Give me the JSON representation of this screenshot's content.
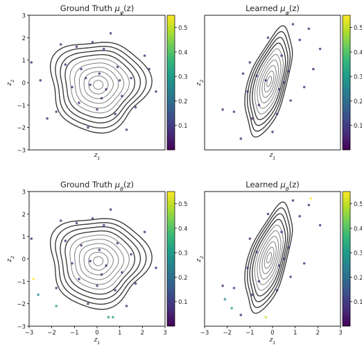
{
  "colormap": {
    "name": "viridis",
    "stops": [
      "#440154",
      "#482878",
      "#3e4989",
      "#31688e",
      "#26828e",
      "#1f9e89",
      "#35b779",
      "#6ece58",
      "#b5de2b",
      "#fde725"
    ],
    "range": [
      0,
      0.55
    ],
    "ticks": [
      0.1,
      0.2,
      0.3,
      0.4,
      0.5
    ],
    "tick_labels": [
      "0.1",
      "0.2",
      "0.3",
      "0.4",
      "0.5"
    ]
  },
  "chart_data": [
    {
      "type": "scatter",
      "title": "Ground Truth μφ(z)",
      "title_parts": {
        "main": "Ground Truth ",
        "sym": "μ",
        "sub": "φ",
        "arg": "(z)"
      },
      "xlabel": {
        "base": "z",
        "sub": "1"
      },
      "ylabel": {
        "base": "z",
        "sub": "2"
      },
      "xlim": [
        -3,
        3
      ],
      "ylim": [
        -3,
        3
      ],
      "xticks": [],
      "xtick_labels": [],
      "yticks": [
        -3,
        -2,
        -1,
        0,
        1,
        2,
        3
      ],
      "ytick_labels": [
        "−3",
        "−2",
        "−1",
        "0",
        "1",
        "2",
        "3"
      ],
      "contour_style": "ground-truth",
      "points": [
        {
          "x": -0.9,
          "y": 1.6,
          "c": 0.05
        },
        {
          "x": -0.2,
          "y": 1.8,
          "c": 0.05
        },
        {
          "x": 0.3,
          "y": 1.5,
          "c": 0.05
        },
        {
          "x": -1.4,
          "y": 0.8,
          "c": 0.05
        },
        {
          "x": -0.7,
          "y": 0.6,
          "c": 0.05
        },
        {
          "x": 0.1,
          "y": 0.4,
          "c": 0.05
        },
        {
          "x": 0.9,
          "y": 0.7,
          "c": 0.05
        },
        {
          "x": 1.5,
          "y": 0.2,
          "c": 0.05
        },
        {
          "x": -1.1,
          "y": -0.2,
          "c": 0.05
        },
        {
          "x": -0.3,
          "y": -0.1,
          "c": 0.05
        },
        {
          "x": 0.4,
          "y": -0.3,
          "c": 0.05
        },
        {
          "x": 1.1,
          "y": -0.6,
          "c": 0.05
        },
        {
          "x": -0.8,
          "y": -0.9,
          "c": 0.05
        },
        {
          "x": 0.0,
          "y": -1.2,
          "c": 0.05
        },
        {
          "x": 0.8,
          "y": -1.4,
          "c": 0.05
        },
        {
          "x": 1.7,
          "y": -1.1,
          "c": 0.05
        },
        {
          "x": -1.8,
          "y": -1.3,
          "c": 0.05
        },
        {
          "x": -2.9,
          "y": 0.9,
          "c": 0.05
        },
        {
          "x": -2.2,
          "y": -1.6,
          "c": 0.05
        },
        {
          "x": 2.1,
          "y": 1.2,
          "c": 0.05
        },
        {
          "x": 2.6,
          "y": -0.4,
          "c": 0.05
        },
        {
          "x": 0.6,
          "y": 2.2,
          "c": 0.05
        },
        {
          "x": -0.4,
          "y": -2.0,
          "c": 0.05
        },
        {
          "x": 1.3,
          "y": -2.1,
          "c": 0.05
        },
        {
          "x": -1.6,
          "y": 1.7,
          "c": 0.05
        },
        {
          "x": 0.2,
          "y": -0.7,
          "c": 0.05
        },
        {
          "x": -0.5,
          "y": 0.2,
          "c": 0.05
        },
        {
          "x": 1.0,
          "y": 0.1,
          "c": 0.05
        },
        {
          "x": -2.5,
          "y": 0.1,
          "c": 0.05
        },
        {
          "x": 2.3,
          "y": 0.6,
          "c": 0.05
        }
      ]
    },
    {
      "type": "scatter",
      "title": "Learned μφ(z)",
      "title_parts": {
        "main": "Learned ",
        "sym": "μ",
        "sub": "φ",
        "arg": "(z)"
      },
      "xlabel": {
        "base": "z",
        "sub": "1"
      },
      "ylabel": {
        "base": "z",
        "sub": "2"
      },
      "xlim": [
        -3,
        3
      ],
      "ylim": [
        -3,
        3
      ],
      "xticks": [],
      "xtick_labels": [],
      "yticks": [],
      "ytick_labels": [],
      "contour_style": "learned",
      "points": [
        {
          "x": -1.0,
          "y": 0.9,
          "c": 0.05
        },
        {
          "x": -0.7,
          "y": 0.3,
          "c": 0.05
        },
        {
          "x": -1.1,
          "y": -0.4,
          "c": 0.05
        },
        {
          "x": -0.6,
          "y": -1.0,
          "c": 0.05
        },
        {
          "x": -0.9,
          "y": -1.6,
          "c": 0.05
        },
        {
          "x": 0.4,
          "y": 1.2,
          "c": 0.05
        },
        {
          "x": 0.7,
          "y": 0.5,
          "c": 0.05
        },
        {
          "x": 0.3,
          "y": -0.3,
          "c": 0.05
        },
        {
          "x": 0.8,
          "y": -0.8,
          "c": 0.05
        },
        {
          "x": 0.2,
          "y": -1.4,
          "c": 0.05
        },
        {
          "x": 1.2,
          "y": 1.9,
          "c": 0.05
        },
        {
          "x": 1.6,
          "y": 2.4,
          "c": 0.05
        },
        {
          "x": 0.9,
          "y": 2.6,
          "c": 0.05
        },
        {
          "x": -1.7,
          "y": -1.3,
          "c": 0.05
        },
        {
          "x": -2.2,
          "y": -1.2,
          "c": 0.05
        },
        {
          "x": -1.4,
          "y": -2.5,
          "c": 0.05
        },
        {
          "x": 1.4,
          "y": -0.2,
          "c": 0.05
        },
        {
          "x": -0.2,
          "y": 2.0,
          "c": 0.05
        },
        {
          "x": 2.1,
          "y": 1.5,
          "c": 0.05
        },
        {
          "x": -0.3,
          "y": 0.1,
          "c": 0.05
        },
        {
          "x": 0.0,
          "y": -2.2,
          "c": 0.05
        },
        {
          "x": 1.8,
          "y": 0.6,
          "c": 0.05
        },
        {
          "x": -1.3,
          "y": 0.4,
          "c": 0.05
        },
        {
          "x": 0.5,
          "y": 0.0,
          "c": 0.05
        }
      ]
    },
    {
      "type": "scatter",
      "title": "Ground Truth μθ(z)",
      "title_parts": {
        "main": "Ground Truth ",
        "sym": "μ",
        "sub": "θ",
        "arg": "(z)"
      },
      "xlabel": {
        "base": "z",
        "sub": "1"
      },
      "ylabel": {
        "base": "z",
        "sub": "2"
      },
      "xlim": [
        -3,
        3
      ],
      "ylim": [
        -3,
        3
      ],
      "xticks": [
        -3,
        -2,
        -1,
        0,
        1,
        2,
        3
      ],
      "xtick_labels": [
        "−3",
        "−2",
        "−1",
        "0",
        "1",
        "2",
        "3"
      ],
      "yticks": [
        -3,
        -2,
        -1,
        0,
        1,
        2,
        3
      ],
      "ytick_labels": [
        "−3",
        "−2",
        "−1",
        "0",
        "1",
        "2",
        "3"
      ],
      "contour_style": "ground-truth",
      "points": [
        {
          "x": -0.9,
          "y": 1.6,
          "c": 0.05
        },
        {
          "x": -0.2,
          "y": 1.8,
          "c": 0.05
        },
        {
          "x": 0.3,
          "y": 1.5,
          "c": 0.05
        },
        {
          "x": -1.4,
          "y": 0.8,
          "c": 0.05
        },
        {
          "x": -0.7,
          "y": 0.6,
          "c": 0.05
        },
        {
          "x": 0.1,
          "y": 0.4,
          "c": 0.05
        },
        {
          "x": 0.9,
          "y": 0.7,
          "c": 0.05
        },
        {
          "x": 1.5,
          "y": 0.2,
          "c": 0.05
        },
        {
          "x": -1.1,
          "y": -0.2,
          "c": 0.05
        },
        {
          "x": -0.3,
          "y": -0.1,
          "c": 0.05
        },
        {
          "x": 0.4,
          "y": -0.3,
          "c": 0.05
        },
        {
          "x": 1.1,
          "y": -0.6,
          "c": 0.05
        },
        {
          "x": -0.8,
          "y": -0.9,
          "c": 0.05
        },
        {
          "x": 0.0,
          "y": -1.2,
          "c": 0.05
        },
        {
          "x": 0.8,
          "y": -1.4,
          "c": 0.05
        },
        {
          "x": 1.7,
          "y": -1.1,
          "c": 0.05
        },
        {
          "x": -1.8,
          "y": -1.3,
          "c": 0.05
        },
        {
          "x": 2.1,
          "y": 1.2,
          "c": 0.05
        },
        {
          "x": 2.6,
          "y": -0.4,
          "c": 0.05
        },
        {
          "x": 0.6,
          "y": 2.2,
          "c": 0.05
        },
        {
          "x": -0.4,
          "y": -2.0,
          "c": 0.05
        },
        {
          "x": 1.3,
          "y": -2.1,
          "c": 0.05
        },
        {
          "x": -1.6,
          "y": 1.7,
          "c": 0.05
        },
        {
          "x": -2.9,
          "y": 0.9,
          "c": 0.05
        },
        {
          "x": -2.8,
          "y": -0.9,
          "c": 0.55
        },
        {
          "x": -2.6,
          "y": -1.6,
          "c": 0.25
        },
        {
          "x": -1.8,
          "y": -2.1,
          "c": 0.3
        },
        {
          "x": 0.5,
          "y": -2.6,
          "c": 0.3
        },
        {
          "x": 0.7,
          "y": -2.6,
          "c": 0.3
        },
        {
          "x": 0.2,
          "y": -0.7,
          "c": 0.05
        }
      ]
    },
    {
      "type": "scatter",
      "title": "Learned μθ(z)",
      "title_parts": {
        "main": "Learned ",
        "sym": "μ",
        "sub": "θ",
        "arg": "(z)"
      },
      "xlabel": {
        "base": "z",
        "sub": "1"
      },
      "ylabel": {
        "base": "z",
        "sub": "2"
      },
      "xlim": [
        -3,
        3
      ],
      "ylim": [
        -3,
        3
      ],
      "xticks": [
        -3,
        -2,
        -1,
        0,
        1,
        2,
        3
      ],
      "xtick_labels": [
        "−3",
        "−2",
        "−1",
        "0",
        "1",
        "2",
        "3"
      ],
      "yticks": [],
      "ytick_labels": [],
      "contour_style": "learned",
      "points": [
        {
          "x": -1.0,
          "y": 0.9,
          "c": 0.05
        },
        {
          "x": -0.7,
          "y": 0.3,
          "c": 0.05
        },
        {
          "x": -1.1,
          "y": -0.4,
          "c": 0.05
        },
        {
          "x": -0.6,
          "y": -1.0,
          "c": 0.05
        },
        {
          "x": -0.9,
          "y": -1.6,
          "c": 0.05
        },
        {
          "x": 0.4,
          "y": 1.2,
          "c": 0.05
        },
        {
          "x": 0.7,
          "y": 0.5,
          "c": 0.05
        },
        {
          "x": 0.3,
          "y": -0.3,
          "c": 0.05
        },
        {
          "x": 0.8,
          "y": -0.8,
          "c": 0.05
        },
        {
          "x": 0.2,
          "y": -1.4,
          "c": 0.05
        },
        {
          "x": 1.2,
          "y": 1.9,
          "c": 0.05
        },
        {
          "x": 1.6,
          "y": 2.4,
          "c": 0.05
        },
        {
          "x": 0.9,
          "y": 2.6,
          "c": 0.05
        },
        {
          "x": -1.7,
          "y": -1.3,
          "c": 0.05
        },
        {
          "x": -2.2,
          "y": -1.2,
          "c": 0.05
        },
        {
          "x": -1.4,
          "y": -2.5,
          "c": 0.05
        },
        {
          "x": 1.4,
          "y": -0.2,
          "c": 0.05
        },
        {
          "x": -0.2,
          "y": 2.0,
          "c": 0.05
        },
        {
          "x": 2.1,
          "y": 1.5,
          "c": 0.05
        },
        {
          "x": 1.7,
          "y": 2.7,
          "c": 0.55
        },
        {
          "x": -0.3,
          "y": -2.6,
          "c": 0.5
        },
        {
          "x": -1.8,
          "y": -2.2,
          "c": 0.3
        },
        {
          "x": -2.1,
          "y": -1.8,
          "c": 0.25
        },
        {
          "x": 0.5,
          "y": 0.0,
          "c": 0.05
        }
      ]
    }
  ]
}
